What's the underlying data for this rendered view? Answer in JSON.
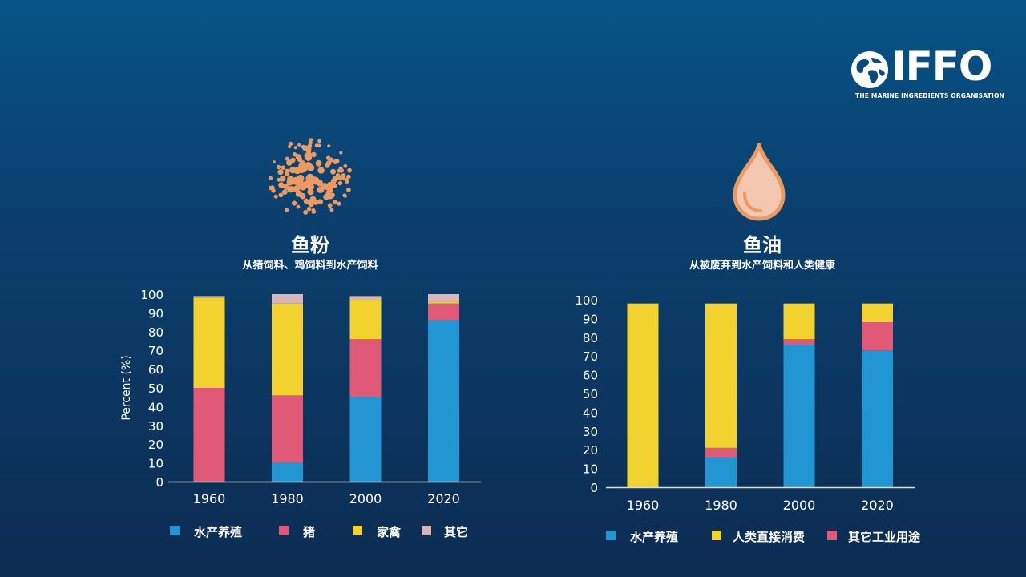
{
  "logo": {
    "name": "IFFO",
    "tagline": "THE MARINE INGREDIENTS ORGANISATION"
  },
  "colors": {
    "aquaculture": "#2196d3",
    "pigs": "#e05a78",
    "poultry": "#f2d22e",
    "other": "#d9b4b8",
    "human": "#f2d22e",
    "industrial": "#e05a78",
    "icon": "#eb9a63"
  },
  "left": {
    "title": "鱼粉",
    "subtitle": "从猪饲料、鸡饲料到水产饲料",
    "icon": "fishmeal-granules-icon",
    "legend": [
      "水产养殖",
      "猪",
      "家禽",
      "其它"
    ]
  },
  "right": {
    "title": "鱼油",
    "subtitle": "从被废弃到水产饲料和人类健康",
    "icon": "oil-drop-icon",
    "legend": [
      "水产养殖",
      "人类直接消费",
      "其它工业用途"
    ]
  },
  "chart_data": [
    {
      "type": "bar",
      "stacked": true,
      "categories": [
        "1960",
        "1980",
        "2000",
        "2020"
      ],
      "ylabel": "Percent (%)",
      "ylim": [
        0,
        100
      ],
      "yticks": [
        0,
        10,
        20,
        30,
        40,
        50,
        60,
        70,
        80,
        90,
        100
      ],
      "series": [
        {
          "name": "水产养殖",
          "values": [
            0,
            10,
            45,
            86
          ]
        },
        {
          "name": "猪",
          "values": [
            50,
            36,
            31,
            9
          ]
        },
        {
          "name": "家禽",
          "values": [
            48,
            49,
            21,
            1
          ]
        },
        {
          "name": "其它",
          "values": [
            1,
            5,
            2,
            4
          ]
        }
      ],
      "grid": false,
      "legend": "bottom"
    },
    {
      "type": "bar",
      "stacked": true,
      "categories": [
        "1960",
        "1980",
        "2000",
        "2020"
      ],
      "ylabel": "",
      "ylim": [
        0,
        100
      ],
      "yticks": [
        0,
        10,
        20,
        30,
        40,
        50,
        60,
        70,
        80,
        90,
        100
      ],
      "series": [
        {
          "name": "水产养殖",
          "values": [
            0,
            16,
            76,
            73
          ]
        },
        {
          "name": "其它工业用途",
          "values": [
            0,
            5,
            3,
            15
          ]
        },
        {
          "name": "人类直接消费",
          "values": [
            98,
            77,
            19,
            10
          ]
        }
      ],
      "grid": false,
      "legend": "bottom"
    }
  ]
}
